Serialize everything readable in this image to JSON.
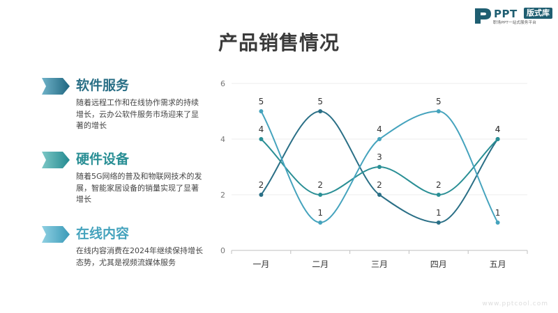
{
  "logo": {
    "name": "PPT",
    "badge": "版式库",
    "tagline": "职场PPT一站式服务平台"
  },
  "title": "产品销售情况",
  "items": [
    {
      "title": "软件服务",
      "desc": "随着远程工作和在线协作需求的持续增长，云办公软件服务市场迎来了显著的增长",
      "color": "#2a6f86"
    },
    {
      "title": "硬件设备",
      "desc": "随着5G网络的普及和物联网技术的发展，智能家居设备的销量实现了显著增长",
      "color": "#2a8f95"
    },
    {
      "title": "在线内容",
      "desc": "在线内容消费在2024年继续保持增长态势，尤其是视频流媒体服务",
      "color": "#45a3bd"
    }
  ],
  "watermark": "www.pptcool.com",
  "chart_data": {
    "type": "line",
    "smooth": true,
    "categories": [
      "一月",
      "二月",
      "三月",
      "四月",
      "五月"
    ],
    "ylim": [
      0,
      6
    ],
    "yticks": [
      0,
      2,
      4,
      6
    ],
    "grid": true,
    "series": [
      {
        "values": [
          2,
          5,
          2,
          1,
          4
        ],
        "color": "#2a6f86"
      },
      {
        "values": [
          4,
          2,
          3,
          2,
          4
        ],
        "color": "#2a8f95"
      },
      {
        "values": [
          5,
          1,
          4,
          5,
          1
        ],
        "color": "#45a3bd"
      }
    ]
  }
}
